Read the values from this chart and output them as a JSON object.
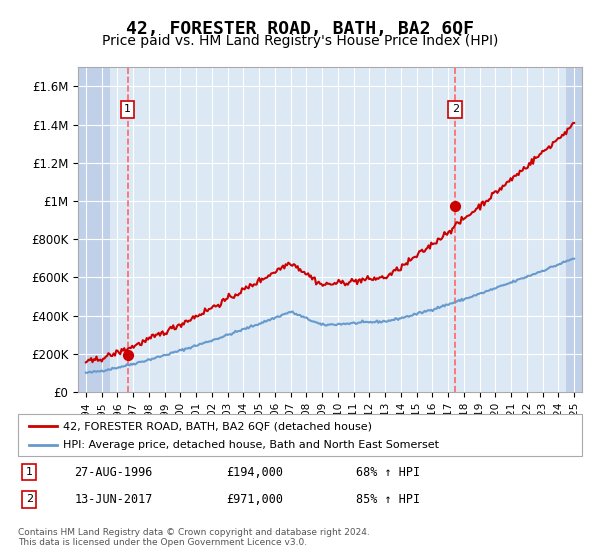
{
  "title": "42, FORESTER ROAD, BATH, BA2 6QF",
  "subtitle": "Price paid vs. HM Land Registry's House Price Index (HPI)",
  "title_fontsize": 13,
  "subtitle_fontsize": 10,
  "background_color": "#dce9f5",
  "hatch_color": "#c0d0e8",
  "plot_bg": "#dce9f5",
  "red_line_color": "#cc0000",
  "blue_line_color": "#6699cc",
  "marker_color": "#cc0000",
  "annotation_box_color": "#cc0000",
  "dashed_line_color": "#ff6666",
  "ylim": [
    0,
    1700000
  ],
  "xlim_start": 1993.5,
  "xlim_end": 2025.5,
  "yticks": [
    0,
    200000,
    400000,
    600000,
    800000,
    1000000,
    1200000,
    1400000,
    1600000
  ],
  "ytick_labels": [
    "£0",
    "£200K",
    "£400K",
    "£600K",
    "£800K",
    "£1M",
    "£1.2M",
    "£1.4M",
    "£1.6M"
  ],
  "sale1_year": 1996.65,
  "sale1_price": 194000,
  "sale1_label": "1",
  "sale1_date": "27-AUG-1996",
  "sale1_price_str": "£194,000",
  "sale1_pct": "68% ↑ HPI",
  "sale2_year": 2017.45,
  "sale2_price": 971000,
  "sale2_label": "2",
  "sale2_date": "13-JUN-2017",
  "sale2_price_str": "£971,000",
  "sale2_pct": "85% ↑ HPI",
  "legend_line1": "42, FORESTER ROAD, BATH, BA2 6QF (detached house)",
  "legend_line2": "HPI: Average price, detached house, Bath and North East Somerset",
  "footer": "Contains HM Land Registry data © Crown copyright and database right 2024.\nThis data is licensed under the Open Government Licence v3.0.",
  "xtick_years": [
    1994,
    1995,
    1996,
    1997,
    1998,
    1999,
    2000,
    2001,
    2002,
    2003,
    2004,
    2005,
    2006,
    2007,
    2008,
    2009,
    2010,
    2011,
    2012,
    2013,
    2014,
    2015,
    2016,
    2017,
    2018,
    2019,
    2020,
    2021,
    2022,
    2023,
    2024,
    2025
  ]
}
